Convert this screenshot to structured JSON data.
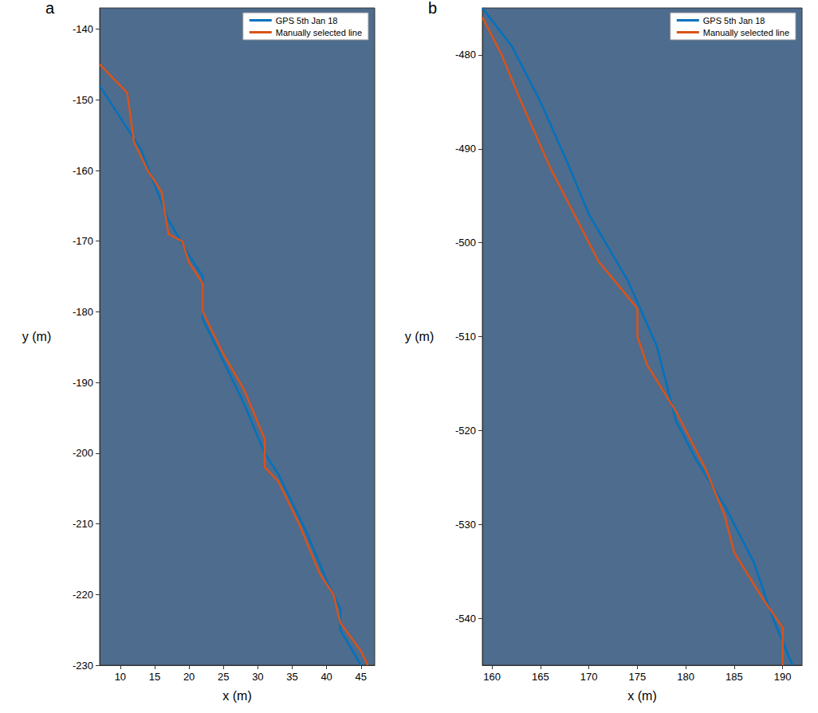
{
  "chart_data": [
    {
      "type": "line",
      "title": "a",
      "x_label": "x (m)",
      "y_label": "y (m)",
      "xlim": [
        7,
        47
      ],
      "xticks": [
        10,
        15,
        20,
        25,
        30,
        35,
        40,
        45
      ],
      "ylim": [
        -230,
        -137
      ],
      "yticks": [
        -230,
        -220,
        -210,
        -200,
        -190,
        -180,
        -170,
        -160,
        -150,
        -140
      ],
      "grid": false,
      "legend": "upper right",
      "series": [
        {
          "name": "GPS 5th Jan 18",
          "color": "#0072bd",
          "x": [
            7,
            11,
            13,
            17,
            20,
            22,
            22,
            25,
            28,
            31,
            33,
            37,
            40,
            42,
            42,
            45
          ],
          "values": [
            -148,
            -154,
            -157,
            -167,
            -172,
            -175,
            -181,
            -187,
            -193,
            -200,
            -203,
            -211,
            -218,
            -222,
            -225,
            -230
          ]
        },
        {
          "name": "Manually selected line",
          "color": "#d95319",
          "x": [
            7,
            9,
            11,
            12,
            14,
            16,
            17,
            19,
            20,
            22,
            22,
            25,
            28,
            31,
            31,
            33,
            36,
            39,
            41,
            42,
            45,
            46
          ],
          "values": [
            -145,
            -147,
            -149,
            -156,
            -160,
            -163,
            -169,
            -170,
            -173,
            -176,
            -180,
            -186,
            -191,
            -198,
            -202,
            -204,
            -210,
            -217,
            -220,
            -224,
            -228,
            -230
          ]
        }
      ]
    },
    {
      "type": "line",
      "title": "b",
      "x_label": "x (m)",
      "y_label": "y (m)",
      "xlim": [
        159,
        192
      ],
      "xticks": [
        160,
        165,
        170,
        175,
        180,
        185,
        190
      ],
      "ylim": [
        -545,
        -475
      ],
      "yticks": [
        -540,
        -530,
        -520,
        -510,
        -500,
        -490,
        -480
      ],
      "grid": false,
      "legend": "upper right",
      "series": [
        {
          "name": "GPS 5th Jan 18",
          "color": "#0072bd",
          "x": [
            159,
            162,
            165,
            168,
            170,
            174,
            177,
            179,
            181,
            184,
            187,
            189,
            191
          ],
          "values": [
            -475,
            -479,
            -485,
            -492,
            -497,
            -504,
            -511,
            -519,
            -523,
            -528,
            -534,
            -540,
            -545
          ]
        },
        {
          "name": "Manually selected line",
          "color": "#d95319",
          "x": [
            159,
            161,
            163,
            166,
            169,
            171,
            175,
            175,
            176,
            179,
            182,
            184,
            185,
            188,
            190,
            190
          ],
          "values": [
            -476,
            -480,
            -485,
            -492,
            -498,
            -502,
            -507,
            -510,
            -513,
            -518,
            -524,
            -529,
            -533,
            -538,
            -541,
            -545
          ]
        }
      ]
    }
  ]
}
